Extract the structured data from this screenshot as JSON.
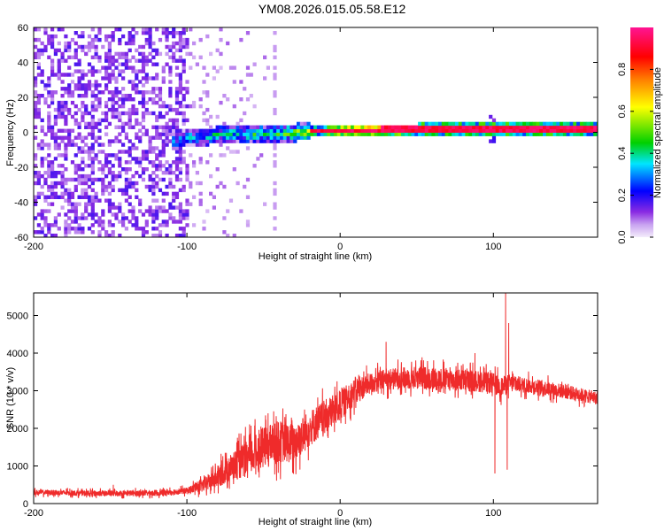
{
  "title": "YM08.2026.015.05.58.E12",
  "chart_data": [
    {
      "type": "heatmap",
      "name": "spectrogram",
      "xlabel": "Height of straight line (km)",
      "ylabel": "Frequency (Hz)",
      "xlim": [
        -200,
        168
      ],
      "ylim": [
        -60,
        60
      ],
      "xticks": [
        "-200",
        "-100",
        "0",
        "100"
      ],
      "xtick_values": [
        -200,
        -100,
        0,
        100
      ],
      "yticks": [
        "-60",
        "-40",
        "-20",
        "0",
        "20",
        "40",
        "60"
      ],
      "ytick_values": [
        -60,
        -40,
        -20,
        0,
        20,
        40,
        60
      ],
      "colorbar": {
        "label": "Normalized spectral amplitude",
        "range": [
          0,
          1
        ],
        "ticks": [
          "0.0",
          "0.2",
          "0.4",
          "0.6",
          "0.8"
        ],
        "tick_values": [
          0,
          0.2,
          0.4,
          0.6,
          0.8
        ],
        "colors": [
          "#f4ecfb",
          "#8a2be2",
          "#0000ff",
          "#00e5ff",
          "#00d000",
          "#ffff00",
          "#ff8000",
          "#ff0000",
          "#ff1493"
        ]
      },
      "signal_band": {
        "center_hz": [
          [
            -110,
            -5
          ],
          [
            -95,
            -4
          ],
          [
            -80,
            -2
          ],
          [
            -65,
            -2
          ],
          [
            -50,
            -2
          ],
          [
            -30,
            -1
          ],
          [
            -15,
            0
          ],
          [
            0,
            0
          ],
          [
            50,
            1
          ],
          [
            100,
            1
          ],
          [
            168,
            1
          ]
        ],
        "amplitude": [
          [
            -110,
            0.3
          ],
          [
            -70,
            0.35
          ],
          [
            -40,
            0.45
          ],
          [
            -15,
            0.6
          ],
          [
            0,
            0.85
          ],
          [
            20,
            0.95
          ],
          [
            168,
            0.95
          ]
        ]
      },
      "noise_region": {
        "from_km": -200,
        "to_km": -100,
        "amplitude": 0.15
      }
    },
    {
      "type": "line",
      "name": "snr",
      "xlabel": "Height of straight line (km)",
      "ylabel": "SNR (10 * v/v)",
      "xlim": [
        -200,
        168
      ],
      "ylim": [
        0,
        5600
      ],
      "xticks": [
        "-200",
        "-100",
        "0",
        "100"
      ],
      "xtick_values": [
        -200,
        -100,
        0,
        100
      ],
      "yticks": [
        "0",
        "1000",
        "2000",
        "3000",
        "4000",
        "5000"
      ],
      "ytick_values": [
        0,
        1000,
        2000,
        3000,
        4000,
        5000
      ],
      "series": [
        {
          "name": "SNR",
          "color": "#ef2b2b",
          "envelope_center": [
            [
              -200,
              300
            ],
            [
              -160,
              270
            ],
            [
              -120,
              280
            ],
            [
              -100,
              340
            ],
            [
              -90,
              480
            ],
            [
              -80,
              700
            ],
            [
              -70,
              1000
            ],
            [
              -60,
              1200
            ],
            [
              -50,
              1500
            ],
            [
              -40,
              1650
            ],
            [
              -30,
              1600
            ],
            [
              -20,
              2000
            ],
            [
              -10,
              2300
            ],
            [
              0,
              2600
            ],
            [
              10,
              3000
            ],
            [
              20,
              3200
            ],
            [
              30,
              3300
            ],
            [
              50,
              3350
            ],
            [
              70,
              3300
            ],
            [
              90,
              3250
            ],
            [
              100,
              3200
            ],
            [
              105,
              3100
            ],
            [
              110,
              3200
            ],
            [
              130,
              3100
            ],
            [
              150,
              2950
            ],
            [
              168,
              2800
            ]
          ],
          "envelope_spread": [
            [
              -200,
              100
            ],
            [
              -100,
              120
            ],
            [
              -80,
              400
            ],
            [
              -60,
              700
            ],
            [
              -40,
              800
            ],
            [
              -20,
              700
            ],
            [
              0,
              600
            ],
            [
              20,
              400
            ],
            [
              60,
              450
            ],
            [
              100,
              400
            ],
            [
              120,
              300
            ],
            [
              168,
              250
            ]
          ],
          "notable_points": [
            [
              -148,
              500
            ],
            [
              -67,
              1750
            ],
            [
              -47,
              2400
            ],
            [
              -2,
              3250
            ],
            [
              30,
              4300
            ],
            [
              88,
              4000
            ],
            [
              101,
              800
            ],
            [
              108,
              5650
            ],
            [
              109,
              900
            ],
            [
              110,
              4800
            ]
          ]
        }
      ]
    }
  ]
}
